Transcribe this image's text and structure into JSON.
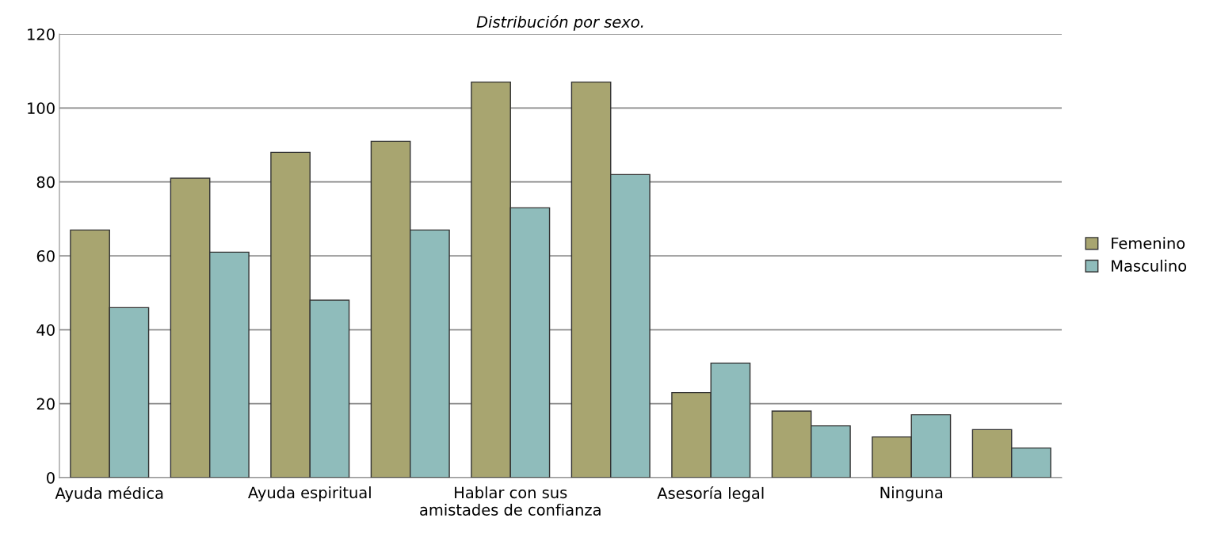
{
  "chart_data": {
    "type": "bar",
    "title": "Distribución por sexo.",
    "categories": [
      "Ayuda médica",
      null,
      "Ayuda espiritual",
      null,
      "Hablar con sus\namistades de confianza",
      null,
      "Asesoría legal",
      null,
      "Ninguna",
      null
    ],
    "series": [
      {
        "name": "Femenino",
        "color": "#a8a570",
        "values": [
          67,
          81,
          88,
          91,
          107,
          107,
          23,
          18,
          11,
          13
        ]
      },
      {
        "name": "Masculino",
        "color": "#8fbcbb",
        "values": [
          46,
          61,
          48,
          67,
          73,
          82,
          31,
          14,
          17,
          8
        ]
      }
    ],
    "ylim": [
      0,
      120
    ],
    "yticks": [
      0,
      20,
      40,
      60,
      80,
      100,
      120
    ],
    "grid": "y",
    "legend": "right"
  }
}
